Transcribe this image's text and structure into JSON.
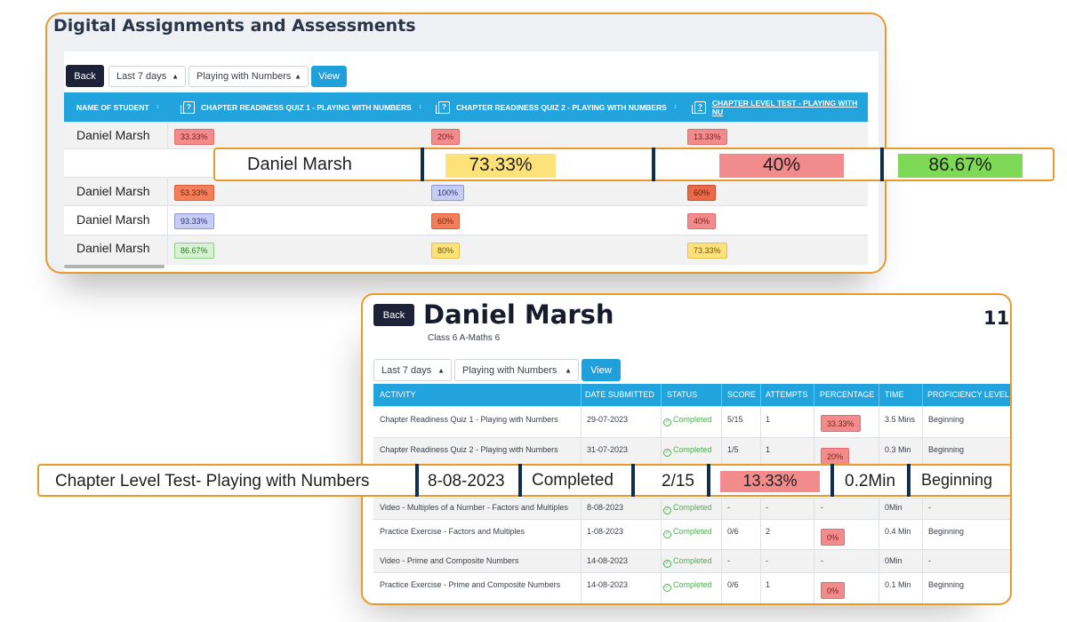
{
  "card1": {
    "title": "Digital Assignments and Assessments",
    "controls": {
      "back": "Back",
      "period": "Last 7 days",
      "chapter": "Playing with Numbers",
      "view": "View"
    },
    "columns": {
      "name": "NAME OF STUDENT",
      "c1": "CHAPTER READINESS QUIZ 1 - PLAYING WITH NUMBERS",
      "c2": "CHAPTER READINESS QUIZ 2 - PLAYING WITH NUMBERS",
      "c3": "CHAPTER LEVEL TEST - PLAYING WITH NU"
    },
    "rows": [
      {
        "name": "Daniel Marsh",
        "v1": "33.33%",
        "v2": "20%",
        "v3": "13.33%"
      },
      {
        "name": "Daniel Marsh",
        "v1": "53.33%",
        "v2": "100%",
        "v3": "60%"
      },
      {
        "name": "Daniel Marsh",
        "v1": "93.33%",
        "v2": "60%",
        "v3": "40%"
      },
      {
        "name": "Daniel Marsh",
        "v1": "86.67%",
        "v2": "80%",
        "v3": "73.33%"
      }
    ]
  },
  "highlight1": {
    "name": "Daniel Marsh",
    "v1": "73.33%",
    "v2": "40%",
    "v3": "86.67%"
  },
  "card2": {
    "back": "Back",
    "student": "Daniel Marsh",
    "class": "Class 6 A-Maths 6",
    "count": "11",
    "period": "Last 7 days",
    "chapter": "Playing with Numbers",
    "view": "View",
    "columns": {
      "activity": "ACTIVITY",
      "date": "DATE SUBMITTED",
      "status": "STATUS",
      "score": "SCORE",
      "attempts": "ATTEMPTS",
      "percentage": "PERCENTAGE",
      "time": "TIME",
      "proficiency": "PROFICIENCY LEVEL"
    },
    "rows": [
      {
        "activity": "Chapter Readiness Quiz 1 - Playing with Numbers",
        "date": "29-07-2023",
        "status": "Completed",
        "score": "5/15",
        "attempts": "1",
        "percentage": "33.33%",
        "time": "3.5 Mins",
        "proficiency": "Beginning"
      },
      {
        "activity": "Chapter Readiness Quiz 2 - Playing with Numbers",
        "date": "31-07-2023",
        "status": "Completed",
        "score": "1/5",
        "attempts": "1",
        "percentage": "20%",
        "time": "0.3 Min",
        "proficiency": "Beginning"
      },
      {
        "activity": "Video - Multiples of a Number - Factors and Multiples",
        "date": "8-08-2023",
        "status": "Completed",
        "score": "-",
        "attempts": "-",
        "percentage": "-",
        "time": "0Min",
        "proficiency": "-"
      },
      {
        "activity": "Practice Exercise - Factors and Multiples",
        "date": "1-08-2023",
        "status": "Completed",
        "score": "0/6",
        "attempts": "2",
        "percentage": "0%",
        "time": "0.4 Min",
        "proficiency": "Beginning"
      },
      {
        "activity": "Video - Prime and Composite Numbers",
        "date": "14-08-2023",
        "status": "Completed",
        "score": "-",
        "attempts": "-",
        "percentage": "-",
        "time": "0Min",
        "proficiency": "-"
      },
      {
        "activity": "Practice Exercise - Prime and Composite Numbers",
        "date": "14-08-2023",
        "status": "Completed",
        "score": "0/6",
        "attempts": "1",
        "percentage": "0%",
        "time": "0.1 Min",
        "proficiency": "Beginning"
      }
    ]
  },
  "highlight2": {
    "activity": "Chapter Level Test- Playing with Numbers",
    "date": "8-08-2023",
    "status": "Completed",
    "score": "2/15",
    "percentage": "13.33%",
    "time": "0.2Min",
    "proficiency": "Beginning"
  },
  "colors": {
    "accent": "#21a3dd",
    "highlight_border": "#e89a2e",
    "dark_button": "#1d2238",
    "yellow": "#fde27a",
    "red": "#f28b8b",
    "green": "#7ed957"
  }
}
